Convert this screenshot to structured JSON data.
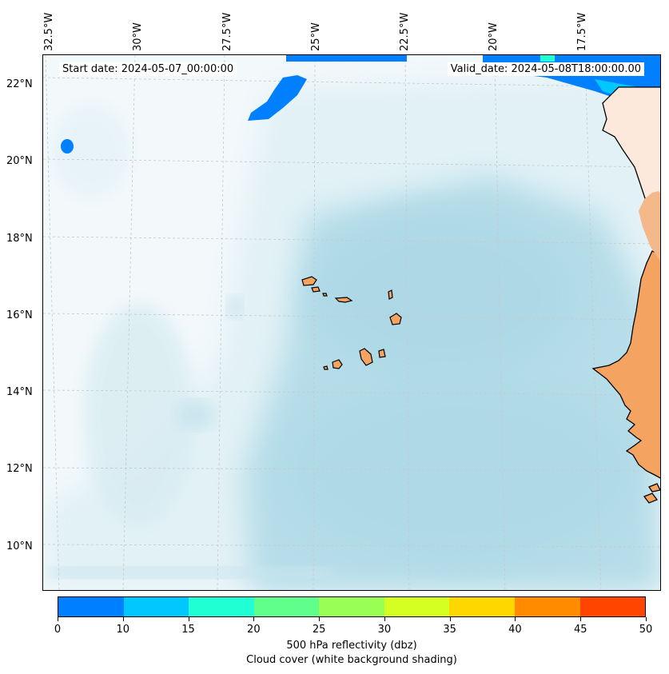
{
  "map": {
    "start_text": "Start date: 2024-05-07_00:00:00",
    "valid_text": "Valid_date: 2024-05-08T18:00:00.00",
    "lon_labels": [
      "32.5°W",
      "30°W",
      "27.5°W",
      "25°W",
      "22.5°W",
      "20°W",
      "17.5°W"
    ],
    "lat_labels": [
      "22°N",
      "20°N",
      "18°N",
      "16°N",
      "14°N",
      "12°N",
      "10°N"
    ],
    "colors": {
      "land": "#f4a460",
      "coastline": "#000000",
      "gridline": "#c8c8c8",
      "cloud_light": "#e8f4f8",
      "cloud_dense": "#add8e6"
    }
  },
  "colorbar": {
    "ticks": [
      "0",
      "10",
      "15",
      "20",
      "25",
      "30",
      "35",
      "40",
      "45",
      "50"
    ],
    "colors": [
      "#0080ff",
      "#00c8ff",
      "#20ffd4",
      "#60ff8c",
      "#99ff55",
      "#d4ff20",
      "#ffd700",
      "#ff8c00",
      "#ff4500"
    ],
    "label_line1": "500 hPa reflectivity (dbz)",
    "label_line2": "Cloud cover (white background shading)"
  }
}
